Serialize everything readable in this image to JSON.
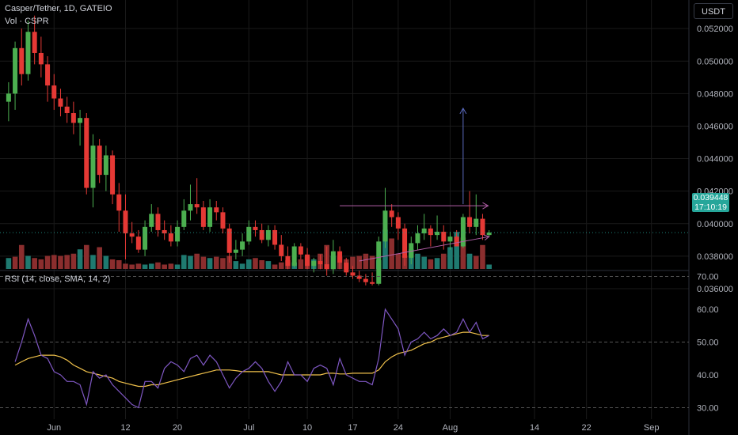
{
  "header": {
    "title": "Casper/Tether, 1D, GATEIO",
    "volume_label": "Vol · CSPR",
    "currency_button": "USDT"
  },
  "last_price": {
    "value": "0.039448",
    "countdown": "17:10:19",
    "color": "#26a69a"
  },
  "rsi_panel": {
    "label": "RSI (14, close, SMA, 14, 2)",
    "upper_band": "70.00",
    "middle_band": "50.00",
    "lower_band": "30.00"
  },
  "colors": {
    "background": "#000000",
    "up": "#26a69a",
    "up_candle": "#4caf50",
    "down": "#e53935",
    "rsi_line": "#7e57c2",
    "rsi_sma": "#f0c14b",
    "trendline": "#b35fa8",
    "projection_arrow": "#5b6bc0"
  },
  "chart_data": [
    {
      "type": "candlestick",
      "title": "Casper/Tether, 1D, GATEIO",
      "ylim": [
        0.0351,
        0.0528
      ],
      "y_ticks": [
        "0.052000",
        "0.050000",
        "0.048000",
        "0.046000",
        "0.044000",
        "0.042000",
        "0.040000",
        "0.038000",
        "0.036000"
      ],
      "x_ticks": [
        {
          "label": "Jun",
          "day": 7
        },
        {
          "label": "12",
          "day": 18
        },
        {
          "label": "20",
          "day": 26
        },
        {
          "label": "Jul",
          "day": 37
        },
        {
          "label": "10",
          "day": 46
        },
        {
          "label": "17",
          "day": 53
        },
        {
          "label": "24",
          "day": 60
        },
        {
          "label": "Aug",
          "day": 68
        },
        {
          "label": "14",
          "day": 81
        },
        {
          "label": "22",
          "day": 89
        },
        {
          "label": "Sep",
          "day": 99
        }
      ],
      "last_day": 76,
      "dates_note": "days are counted from May 25",
      "candles": [
        [
          0.0475,
          0.0487,
          0.0463,
          0.048
        ],
        [
          0.048,
          0.0512,
          0.047,
          0.0508
        ],
        [
          0.0508,
          0.052,
          0.0485,
          0.0492
        ],
        [
          0.0492,
          0.0525,
          0.0488,
          0.0518
        ],
        [
          0.0518,
          0.0528,
          0.0498,
          0.0505
        ],
        [
          0.0505,
          0.0515,
          0.049,
          0.0498
        ],
        [
          0.0498,
          0.0503,
          0.0475,
          0.0485
        ],
        [
          0.0485,
          0.0492,
          0.047,
          0.0477
        ],
        [
          0.0477,
          0.0483,
          0.0466,
          0.0472
        ],
        [
          0.0472,
          0.0478,
          0.0462,
          0.0468
        ],
        [
          0.0468,
          0.0475,
          0.0455,
          0.0462
        ],
        [
          0.0462,
          0.047,
          0.0448,
          0.0465
        ],
        [
          0.0465,
          0.0468,
          0.0418,
          0.0422
        ],
        [
          0.0422,
          0.0455,
          0.041,
          0.0448
        ],
        [
          0.0448,
          0.0452,
          0.0425,
          0.043
        ],
        [
          0.043,
          0.0448,
          0.042,
          0.0442
        ],
        [
          0.0442,
          0.0445,
          0.0412,
          0.0418
        ],
        [
          0.0418,
          0.0425,
          0.0395,
          0.0408
        ],
        [
          0.0408,
          0.0418,
          0.0378,
          0.0394
        ],
        [
          0.0394,
          0.0401,
          0.0388,
          0.0392
        ],
        [
          0.0392,
          0.0396,
          0.0382,
          0.0384
        ],
        [
          0.0384,
          0.0402,
          0.038,
          0.0398
        ],
        [
          0.0398,
          0.0412,
          0.0395,
          0.0406
        ],
        [
          0.0406,
          0.041,
          0.0392,
          0.0396
        ],
        [
          0.0396,
          0.0402,
          0.039,
          0.0394
        ],
        [
          0.0394,
          0.0399,
          0.0386,
          0.0389
        ],
        [
          0.0389,
          0.0402,
          0.0386,
          0.0398
        ],
        [
          0.0398,
          0.0415,
          0.0396,
          0.0408
        ],
        [
          0.0408,
          0.0424,
          0.0402,
          0.0412
        ],
        [
          0.0412,
          0.0428,
          0.0406,
          0.041
        ],
        [
          0.041,
          0.0414,
          0.0396,
          0.0398
        ],
        [
          0.0398,
          0.0415,
          0.0395,
          0.041
        ],
        [
          0.041,
          0.0414,
          0.0402,
          0.0407
        ],
        [
          0.0407,
          0.041,
          0.0394,
          0.0397
        ],
        [
          0.0397,
          0.04,
          0.0376,
          0.0382
        ],
        [
          0.0382,
          0.039,
          0.0378,
          0.0384
        ],
        [
          0.0384,
          0.0394,
          0.038,
          0.0389
        ],
        [
          0.0389,
          0.0402,
          0.0387,
          0.0398
        ],
        [
          0.0398,
          0.0402,
          0.0392,
          0.0396
        ],
        [
          0.0396,
          0.04,
          0.0388,
          0.039
        ],
        [
          0.039,
          0.0399,
          0.0386,
          0.0396
        ],
        [
          0.0396,
          0.0399,
          0.0384,
          0.0387
        ],
        [
          0.0387,
          0.0393,
          0.0377,
          0.038
        ],
        [
          0.038,
          0.0386,
          0.0372,
          0.0374
        ],
        [
          0.0374,
          0.0388,
          0.0373,
          0.0386
        ],
        [
          0.0386,
          0.0388,
          0.0378,
          0.0381
        ],
        [
          0.0381,
          0.0385,
          0.0372,
          0.0374
        ],
        [
          0.0374,
          0.0379,
          0.037,
          0.0377
        ],
        [
          0.0377,
          0.0381,
          0.0372,
          0.0375
        ],
        [
          0.0375,
          0.0386,
          0.0368,
          0.0372
        ],
        [
          0.0372,
          0.039,
          0.0369,
          0.0383
        ],
        [
          0.0383,
          0.0386,
          0.0372,
          0.0376
        ],
        [
          0.0376,
          0.0379,
          0.0368,
          0.037
        ],
        [
          0.037,
          0.0374,
          0.0366,
          0.0368
        ],
        [
          0.0368,
          0.0371,
          0.0364,
          0.0366
        ],
        [
          0.0366,
          0.0369,
          0.0362,
          0.0364
        ],
        [
          0.0364,
          0.037,
          0.0362,
          0.0363
        ],
        [
          0.0363,
          0.0392,
          0.0362,
          0.0389
        ],
        [
          0.0389,
          0.0422,
          0.0385,
          0.0408
        ],
        [
          0.0408,
          0.0412,
          0.0398,
          0.0404
        ],
        [
          0.0404,
          0.0407,
          0.039,
          0.0397
        ],
        [
          0.0397,
          0.04,
          0.0374,
          0.0379
        ],
        [
          0.0379,
          0.0392,
          0.0375,
          0.0388
        ],
        [
          0.0388,
          0.0399,
          0.0384,
          0.0394
        ],
        [
          0.0394,
          0.0406,
          0.039,
          0.0397
        ],
        [
          0.0397,
          0.0399,
          0.0386,
          0.0393
        ],
        [
          0.0393,
          0.0405,
          0.039,
          0.0395
        ],
        [
          0.0395,
          0.0399,
          0.0384,
          0.0389
        ],
        [
          0.0389,
          0.0395,
          0.0384,
          0.0392
        ],
        [
          0.0392,
          0.0396,
          0.0386,
          0.0386
        ],
        [
          0.0386,
          0.0406,
          0.0385,
          0.0404
        ],
        [
          0.0404,
          0.042,
          0.0394,
          0.0398
        ],
        [
          0.0398,
          0.0418,
          0.0393,
          0.0403
        ],
        [
          0.0403,
          0.0406,
          0.039,
          0.0393
        ],
        [
          0.0393,
          0.0396,
          0.0392,
          0.03945
        ]
      ],
      "annotations": [
        {
          "type": "horizontal_line",
          "y": 0.0411,
          "x_start_day": 51,
          "x_end_day": 73,
          "arrow": "right"
        },
        {
          "type": "ascending_line",
          "points": [
            [
              54,
              0.0377
            ],
            [
              74,
              0.0392
            ]
          ],
          "arrow": "right"
        },
        {
          "type": "vertical_arrow",
          "day": 70,
          "y_from": 0.0412,
          "y_to": 0.0471
        }
      ]
    },
    {
      "type": "bar",
      "title": "Vol · CSPR",
      "note": "volume values shown in relative units",
      "values": [
        0.25,
        0.28,
        0.55,
        0.3,
        0.25,
        0.22,
        0.3,
        0.32,
        0.3,
        0.32,
        0.35,
        0.45,
        0.55,
        0.32,
        0.5,
        0.3,
        0.22,
        0.2,
        0.12,
        0.1,
        0.12,
        0.1,
        0.12,
        0.15,
        0.1,
        0.12,
        0.1,
        0.32,
        0.3,
        0.35,
        0.28,
        0.25,
        0.28,
        0.25,
        0.3,
        0.18,
        0.12,
        0.22,
        0.25,
        0.2,
        0.18,
        0.1,
        0.15,
        0.2,
        0.15,
        0.22,
        0.28,
        0.22,
        0.35,
        0.55,
        0.3,
        0.28,
        0.22,
        0.28,
        0.3,
        0.35,
        0.3,
        0.2,
        0.9,
        0.7,
        0.35,
        0.3,
        0.45,
        0.35,
        0.28,
        0.22,
        0.25,
        0.35,
        0.5,
        0.85,
        0.72,
        0.35,
        0.3,
        0.55,
        0.1
      ],
      "directions": [
        "up",
        "down",
        "down",
        "up",
        "down",
        "down",
        "down",
        "down",
        "down",
        "down",
        "down",
        "up",
        "down",
        "up",
        "down",
        "up",
        "down",
        "down",
        "down",
        "down",
        "down",
        "up",
        "up",
        "down",
        "down",
        "down",
        "up",
        "up",
        "up",
        "down",
        "down",
        "up",
        "down",
        "down",
        "down",
        "up",
        "up",
        "up",
        "down",
        "down",
        "up",
        "down",
        "down",
        "down",
        "up",
        "down",
        "down",
        "up",
        "down",
        "down",
        "up",
        "down",
        "down",
        "down",
        "down",
        "down",
        "down",
        "up",
        "up",
        "down",
        "down",
        "down",
        "up",
        "up",
        "up",
        "down",
        "up",
        "down",
        "up",
        "up",
        "down",
        "up",
        "down",
        "down",
        "up"
      ]
    },
    {
      "type": "line",
      "title": "RSI (14, close, SMA, 14, 2)",
      "ylim": [
        27,
        71
      ],
      "y_ticks": [
        "70.00",
        "60.00",
        "50.00",
        "40.00",
        "30.00"
      ],
      "series": [
        {
          "name": "RSI",
          "values": [
            null,
            44,
            50,
            57,
            52,
            46,
            45,
            41,
            40,
            38,
            38,
            37,
            31,
            41,
            39,
            40,
            37,
            35,
            33,
            31,
            30,
            38,
            38,
            36,
            42,
            44,
            43,
            41,
            45,
            46,
            43,
            46,
            44,
            40,
            36,
            39,
            41,
            42,
            44,
            42,
            38,
            35,
            38,
            44,
            40,
            40,
            38,
            42,
            43,
            42,
            37,
            45,
            40,
            39,
            38,
            38,
            37,
            45,
            60,
            57,
            54,
            46,
            50,
            51,
            53,
            51,
            52,
            54,
            52,
            53,
            57,
            53,
            56,
            51,
            52
          ]
        },
        {
          "name": "SMA",
          "values": [
            null,
            43,
            44,
            45,
            45.5,
            46,
            46,
            46,
            45.5,
            44.5,
            43,
            42,
            41,
            40.5,
            40,
            39.5,
            39,
            38,
            37.5,
            37,
            36.5,
            36.5,
            37,
            37,
            37.5,
            38,
            38.5,
            39,
            39.5,
            40,
            40.5,
            41,
            41.5,
            41.5,
            41.5,
            41.3,
            41,
            41,
            41,
            41,
            41,
            40.5,
            40,
            40,
            40,
            40,
            40,
            40,
            40,
            40.5,
            40.5,
            40.3,
            40.3,
            40.5,
            40.5,
            40.5,
            40.5,
            41.5,
            44,
            45.5,
            46.5,
            47,
            47.5,
            48.5,
            49.5,
            50,
            51,
            51.5,
            52,
            52.5,
            53,
            53,
            52.5,
            52,
            52
          ]
        }
      ],
      "bands": [
        70,
        50,
        30
      ]
    }
  ]
}
